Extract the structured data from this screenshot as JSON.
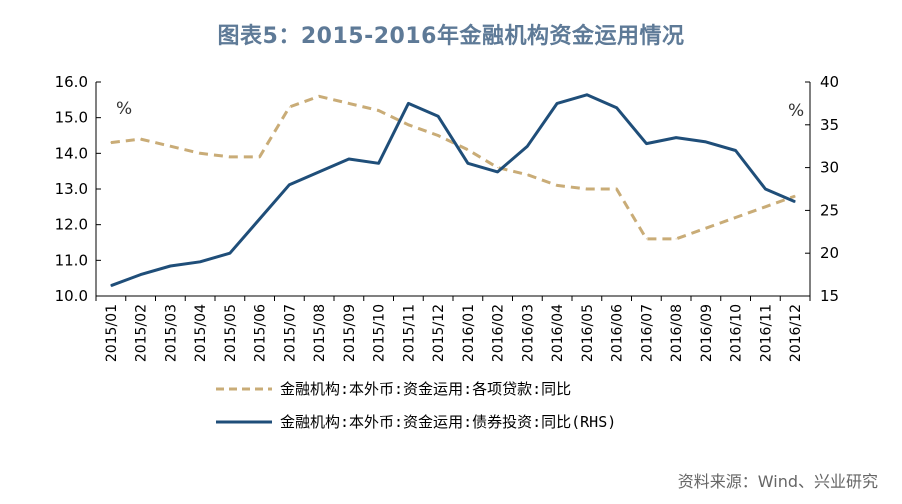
{
  "title": "图表5：2015-2016年金融机构资金运用情况",
  "source": "资料来源：Wind、兴业研究",
  "colors": {
    "series1": "#c9ac77",
    "series2": "#1f4e79",
    "title": "#5e7a97"
  },
  "chart_data": {
    "type": "line",
    "title": "图表5：2015-2016年金融机构资金运用情况",
    "categories": [
      "2015/01",
      "2015/02",
      "2015/03",
      "2015/04",
      "2015/05",
      "2015/06",
      "2015/07",
      "2015/08",
      "2015/09",
      "2015/10",
      "2015/11",
      "2015/12",
      "2016/01",
      "2016/02",
      "2016/03",
      "2016/04",
      "2016/05",
      "2016/06",
      "2016/07",
      "2016/08",
      "2016/09",
      "2016/10",
      "2016/11",
      "2016/12"
    ],
    "left_axis": {
      "unit": "%",
      "ylim": [
        10.0,
        16.0
      ],
      "ticks": [
        "10.0",
        "11.0",
        "12.0",
        "13.0",
        "14.0",
        "15.0",
        "16.0"
      ]
    },
    "right_axis": {
      "unit": "%",
      "ylim": [
        15,
        40
      ],
      "ticks": [
        "15",
        "20",
        "25",
        "30",
        "35",
        "40"
      ]
    },
    "series": [
      {
        "name": "金融机构:本外币:资金运用:各项贷款:同比",
        "axis": "left",
        "style": "dashed",
        "values": [
          14.3,
          14.4,
          14.2,
          14.0,
          13.9,
          13.9,
          15.3,
          15.6,
          15.4,
          15.2,
          14.8,
          14.5,
          14.1,
          13.6,
          13.4,
          13.1,
          13.0,
          13.0,
          11.6,
          11.6,
          11.9,
          12.2,
          12.5,
          12.8
        ]
      },
      {
        "name": "金融机构:本外币:资金运用:债券投资:同比(RHS)",
        "axis": "right",
        "style": "solid",
        "values": [
          16.2,
          17.5,
          18.5,
          19.0,
          20.0,
          24.0,
          28.0,
          29.5,
          31.0,
          30.5,
          37.5,
          36.0,
          30.5,
          29.5,
          32.5,
          37.5,
          38.5,
          37.0,
          32.8,
          33.5,
          33.0,
          32.0,
          27.5,
          26.0
        ]
      }
    ],
    "grid": false,
    "legend_position": "bottom"
  }
}
